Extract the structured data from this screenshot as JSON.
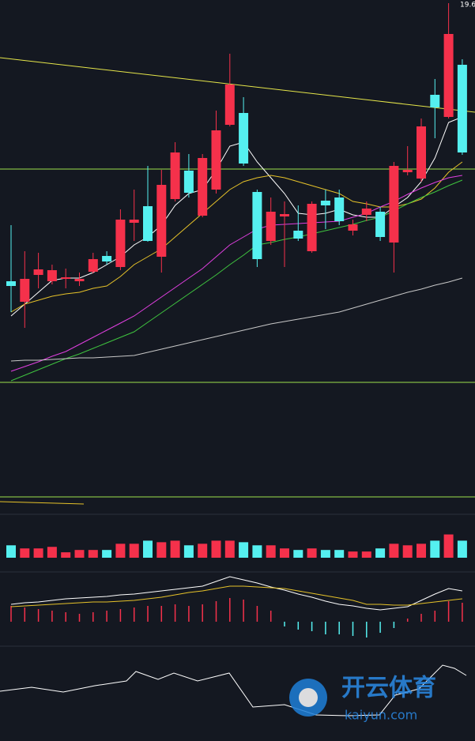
{
  "chart_data": {
    "type": "candlestick",
    "annotation": "19.6",
    "ylim": [
      14.74,
      19.64
    ],
    "up_color": "#f5314b",
    "down_color": "#55f0f0",
    "open": [
      16.08,
      15.82,
      16.16,
      16.08,
      16.11,
      16.08,
      16.2,
      16.4,
      16.26,
      16.82,
      17.03,
      16.39,
      17.12,
      17.48,
      16.91,
      17.24,
      18.06,
      18.21,
      17.21,
      16.59,
      16.9,
      16.72,
      16.46,
      17.1,
      17.14,
      16.72,
      16.92,
      16.96,
      16.57,
      17.46,
      17.38,
      18.44,
      18.16,
      18.82
    ],
    "close": [
      16.02,
      16.11,
      16.23,
      16.22,
      16.13,
      16.11,
      16.36,
      16.33,
      16.86,
      16.86,
      16.59,
      17.3,
      17.71,
      17.2,
      17.64,
      17.99,
      18.57,
      17.57,
      16.36,
      16.96,
      16.93,
      16.62,
      17.06,
      17.04,
      16.84,
      16.8,
      17.0,
      16.64,
      17.54,
      17.49,
      18.04,
      18.28,
      19.21,
      17.71
    ],
    "high": [
      16.79,
      16.46,
      16.44,
      16.29,
      16.24,
      16.19,
      16.44,
      16.46,
      16.99,
      17.24,
      17.54,
      17.49,
      17.84,
      17.69,
      17.69,
      18.24,
      18.96,
      18.41,
      17.24,
      17.14,
      17.09,
      17.04,
      17.09,
      17.24,
      17.24,
      16.86,
      17.09,
      17.02,
      17.59,
      17.79,
      18.14,
      18.64,
      19.6,
      18.89
    ],
    "low": [
      15.69,
      15.49,
      15.99,
      16.04,
      15.99,
      16.02,
      16.18,
      16.29,
      16.22,
      16.59,
      16.58,
      16.19,
      17.09,
      17.14,
      16.89,
      17.19,
      18.04,
      17.54,
      16.26,
      16.54,
      16.26,
      16.59,
      16.44,
      16.74,
      16.79,
      16.66,
      16.84,
      16.59,
      16.19,
      17.42,
      17.34,
      17.89,
      18.14,
      17.68
    ],
    "series": [
      {
        "color": "#ffffff",
        "values": [
          15.64,
          15.79,
          15.94,
          16.09,
          16.12,
          16.12,
          16.19,
          16.29,
          16.39,
          16.54,
          16.64,
          16.79,
          17.04,
          17.19,
          17.24,
          17.49,
          17.79,
          17.84,
          17.59,
          17.39,
          17.19,
          16.94,
          16.92,
          16.94,
          16.99,
          16.92,
          16.89,
          16.89,
          17.02,
          17.14,
          17.34,
          17.64,
          18.09,
          18.16
        ]
      },
      {
        "color": "#e6c229",
        "values": [
          15.69,
          15.79,
          15.84,
          15.89,
          15.92,
          15.94,
          15.99,
          16.02,
          16.14,
          16.29,
          16.39,
          16.49,
          16.64,
          16.79,
          16.94,
          17.09,
          17.24,
          17.34,
          17.39,
          17.42,
          17.39,
          17.34,
          17.29,
          17.24,
          17.19,
          17.09,
          17.06,
          17.02,
          17.02,
          17.06,
          17.12,
          17.26,
          17.46,
          17.59
        ]
      },
      {
        "color": "#e03fe0",
        "values": [
          14.94,
          15.0,
          15.06,
          15.13,
          15.19,
          15.28,
          15.37,
          15.46,
          15.55,
          15.64,
          15.76,
          15.88,
          16.0,
          16.12,
          16.24,
          16.39,
          16.54,
          16.64,
          16.74,
          16.79,
          16.8,
          16.81,
          16.82,
          16.83,
          16.84,
          16.89,
          16.94,
          17.02,
          17.09,
          17.18,
          17.26,
          17.33,
          17.39,
          17.42
        ]
      },
      {
        "color": "#3fc43f",
        "values": [
          14.82,
          14.89,
          14.96,
          15.03,
          15.1,
          15.16,
          15.23,
          15.3,
          15.37,
          15.44,
          15.56,
          15.68,
          15.8,
          15.92,
          16.04,
          16.16,
          16.29,
          16.41,
          16.54,
          16.57,
          16.61,
          16.64,
          16.68,
          16.72,
          16.76,
          16.8,
          16.85,
          16.89,
          16.97,
          17.06,
          17.14,
          17.21,
          17.29,
          17.36
        ]
      },
      {
        "color": "#c8c8c8",
        "values": [
          15.07,
          15.08,
          15.08,
          15.09,
          15.1,
          15.11,
          15.11,
          15.12,
          15.13,
          15.14,
          15.18,
          15.22,
          15.26,
          15.3,
          15.34,
          15.38,
          15.42,
          15.46,
          15.5,
          15.54,
          15.57,
          15.6,
          15.63,
          15.66,
          15.69,
          15.74,
          15.79,
          15.84,
          15.89,
          15.94,
          15.98,
          16.03,
          16.07,
          16.12
        ]
      }
    ],
    "volume": {
      "ylim": [
        0,
        56
      ],
      "values": [
        16,
        12,
        12,
        14,
        7,
        10,
        10,
        10,
        18,
        18,
        22,
        20,
        22,
        16,
        18,
        22,
        22,
        20,
        16,
        16,
        12,
        10,
        12,
        10,
        10,
        8,
        8,
        12,
        18,
        16,
        18,
        22,
        30,
        22
      ]
    },
    "macd": {
      "ylim": [
        -47,
        60
      ],
      "hist": [
        20,
        18,
        16,
        14,
        12,
        10,
        12,
        14,
        16,
        18,
        20,
        20,
        22,
        20,
        22,
        26,
        30,
        28,
        20,
        14,
        -6,
        -10,
        -12,
        -16,
        -16,
        -18,
        -20,
        -14,
        -8,
        4,
        10,
        14,
        26,
        24
      ],
      "dif": {
        "color": "#ffffff",
        "values": [
          22,
          24,
          25,
          27,
          29,
          30,
          31,
          32,
          34,
          35,
          37,
          39,
          41,
          43,
          45,
          51,
          57,
          53,
          49,
          44,
          40,
          35,
          31,
          26,
          22,
          20,
          17,
          15,
          17,
          19,
          27,
          35,
          42,
          39
        ]
      },
      "dea": {
        "color": "#e6c229",
        "values": [
          19,
          20,
          21,
          22,
          23,
          24,
          25,
          25,
          26,
          27,
          29,
          31,
          34,
          37,
          39,
          42,
          45,
          45,
          44,
          43,
          42,
          39,
          36,
          33,
          30,
          27,
          22,
          22,
          21,
          21,
          23,
          25,
          27,
          29
        ]
      }
    },
    "watermark": [
      "开云体育",
      "kaiyun.com"
    ]
  }
}
